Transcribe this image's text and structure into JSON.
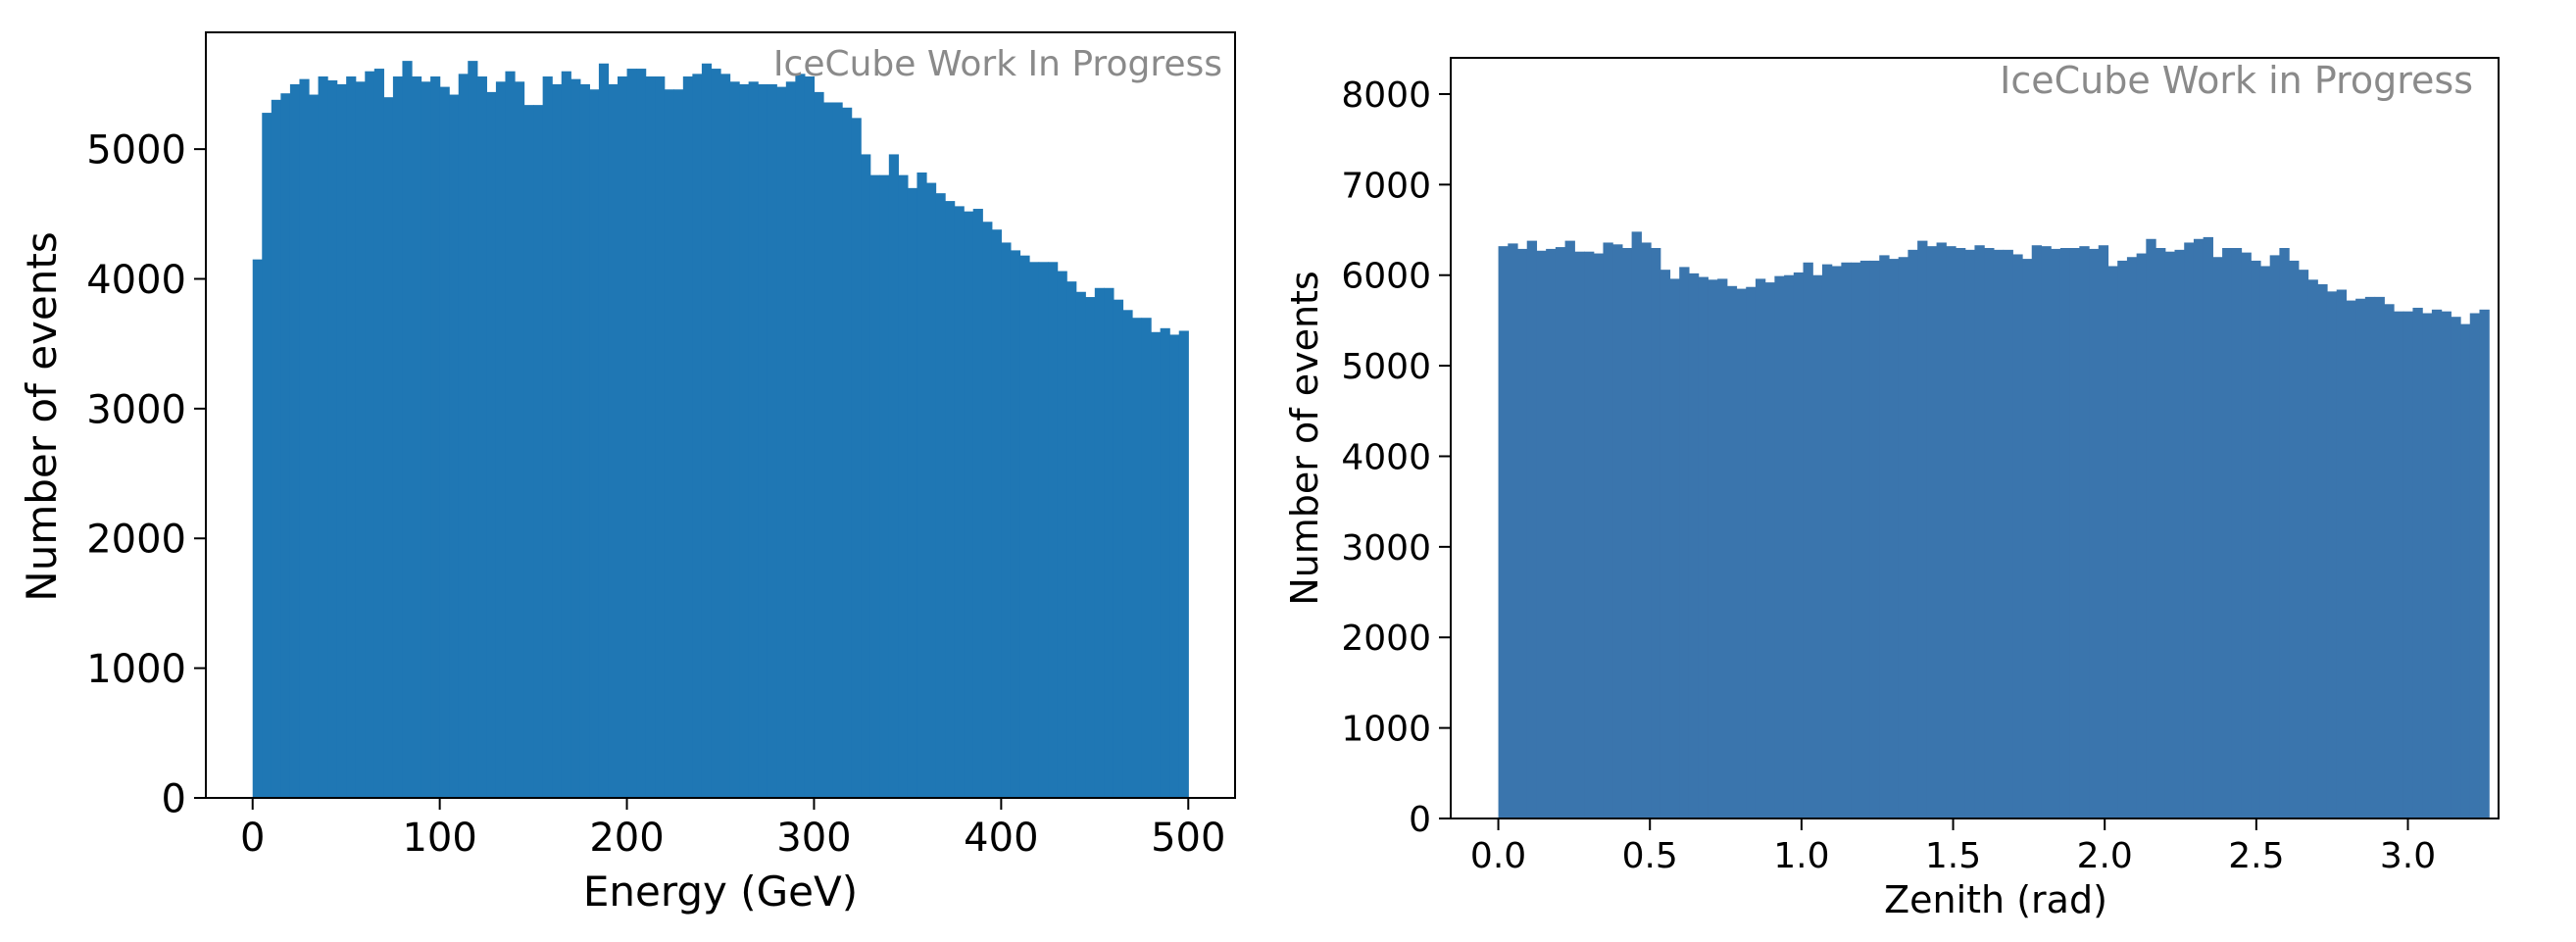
{
  "chart_data": [
    {
      "type": "bar",
      "subtype": "histogram",
      "watermark": "IceCube Work In Progress",
      "xlabel": "Energy (GeV)",
      "ylabel": "Number of events",
      "xlim": [
        -25,
        525
      ],
      "ylim": [
        0,
        5900
      ],
      "xticks": [
        0,
        100,
        200,
        300,
        400,
        500
      ],
      "yticks": [
        0,
        1000,
        2000,
        3000,
        4000,
        5000
      ],
      "color": "#1f77b4",
      "bin_start": 0,
      "bin_width": 5,
      "values": [
        4150,
        5280,
        5380,
        5430,
        5500,
        5540,
        5420,
        5560,
        5530,
        5500,
        5560,
        5520,
        5600,
        5620,
        5400,
        5560,
        5680,
        5560,
        5520,
        5560,
        5480,
        5420,
        5580,
        5680,
        5560,
        5440,
        5520,
        5600,
        5520,
        5340,
        5340,
        5560,
        5500,
        5600,
        5540,
        5500,
        5460,
        5660,
        5500,
        5560,
        5620,
        5620,
        5560,
        5560,
        5460,
        5460,
        5560,
        5580,
        5660,
        5620,
        5580,
        5520,
        5500,
        5520,
        5500,
        5500,
        5480,
        5520,
        5580,
        5560,
        5440,
        5360,
        5360,
        5320,
        5240,
        4960,
        4800,
        4800,
        4960,
        4800,
        4700,
        4820,
        4740,
        4660,
        4600,
        4560,
        4520,
        4540,
        4440,
        4380,
        4280,
        4220,
        4180,
        4130,
        4130,
        4130,
        4060,
        3980,
        3900,
        3860,
        3930,
        3930,
        3840,
        3760,
        3700,
        3700,
        3590,
        3620,
        3570,
        3600
      ]
    },
    {
      "type": "bar",
      "subtype": "histogram",
      "watermark": "IceCube Work in Progress",
      "xlabel": "Zenith (rad)",
      "ylabel": "Number of events",
      "xlim": [
        -0.157,
        3.299
      ],
      "ylim": [
        0,
        8400
      ],
      "xticks": [
        0.0,
        0.5,
        1.0,
        1.5,
        2.0,
        2.5,
        3.0
      ],
      "yticks": [
        0,
        1000,
        2000,
        3000,
        4000,
        5000,
        6000,
        7000,
        8000
      ],
      "color": "#3a75ad",
      "bin_start": 0,
      "bin_width": 0.031416,
      "values": [
        6320,
        6350,
        6290,
        6380,
        6270,
        6290,
        6310,
        6380,
        6260,
        6260,
        6240,
        6360,
        6340,
        6300,
        6480,
        6360,
        6300,
        6060,
        5960,
        6090,
        6020,
        5980,
        5950,
        5960,
        5880,
        5850,
        5870,
        5960,
        5920,
        5990,
        6000,
        6030,
        6140,
        6000,
        6120,
        6100,
        6140,
        6140,
        6160,
        6160,
        6220,
        6180,
        6200,
        6280,
        6380,
        6320,
        6360,
        6320,
        6300,
        6280,
        6330,
        6300,
        6280,
        6280,
        6230,
        6180,
        6330,
        6320,
        6290,
        6300,
        6300,
        6320,
        6290,
        6330,
        6100,
        6160,
        6200,
        6240,
        6400,
        6300,
        6260,
        6280,
        6360,
        6400,
        6420,
        6200,
        6300,
        6300,
        6250,
        6160,
        6100,
        6220,
        6300,
        6160,
        6060,
        5950,
        5900,
        5820,
        5840,
        5720,
        5740,
        5760,
        5760,
        5680,
        5600,
        5600,
        5640,
        5580,
        5620,
        5600,
        5540,
        5460,
        5580,
        5620
      ]
    }
  ]
}
